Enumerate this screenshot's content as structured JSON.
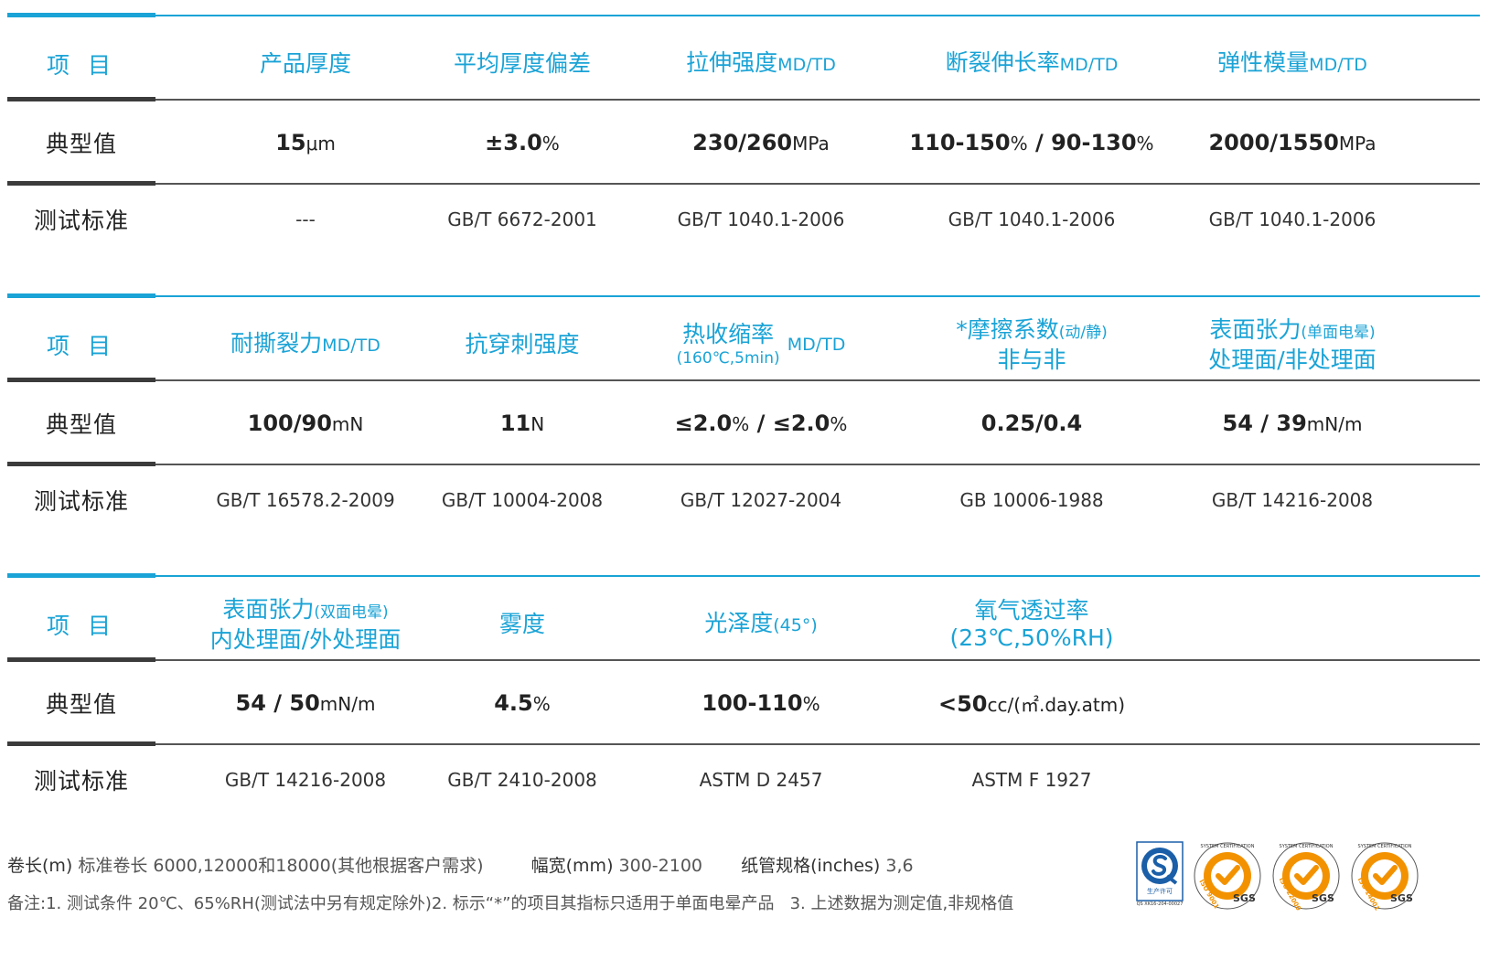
{
  "labels": {
    "item": "项 目",
    "typical": "典型值",
    "standard": "测试标准"
  },
  "section1": {
    "headers": [
      {
        "main": "产品厚度",
        "suffix": ""
      },
      {
        "main": "平均厚度偏差",
        "suffix": ""
      },
      {
        "main": "拉伸强度",
        "suffix": "MD/TD"
      },
      {
        "main": "断裂伸长率",
        "suffix": "MD/TD"
      },
      {
        "main": "弹性模量",
        "suffix": "MD/TD"
      }
    ],
    "values": [
      {
        "num": "15",
        "unit": "μm"
      },
      {
        "num": "±3.0",
        "unit": "%"
      },
      {
        "num": "230/260",
        "unit": "MPa"
      },
      {
        "num1": "110-150",
        "unit1": "%",
        "sep": " / ",
        "num2": "90-130",
        "unit2": "%"
      },
      {
        "num": "2000/1550",
        "unit": "MPa"
      }
    ],
    "standards": [
      "---",
      "GB/T 6672-2001",
      "GB/T 1040.1-2006",
      "GB/T 1040.1-2006",
      "GB/T 1040.1-2006"
    ]
  },
  "section2": {
    "headers": [
      {
        "main": "耐撕裂力",
        "suffix": "MD/TD"
      },
      {
        "main": "抗穿刺强度",
        "suffix": ""
      },
      {
        "main": "热收缩率",
        "sub": "(160℃,5min)",
        "suffix": "MD/TD"
      },
      {
        "main": "*摩擦系数",
        "small": "(动/静)",
        "sub": "非与非"
      },
      {
        "main": "表面张力",
        "small": "(单面电晕)",
        "sub": "处理面/非处理面"
      }
    ],
    "values": [
      {
        "num": "100/90",
        "unit": "mN"
      },
      {
        "num": "11",
        "unit": "N"
      },
      {
        "num1": "≤2.0",
        "unit1": "%",
        "sep": " / ",
        "num2": "≤2.0",
        "unit2": "%"
      },
      {
        "num": "0.25/0.4",
        "unit": ""
      },
      {
        "num": "54 / 39",
        "unit": "mN/m"
      }
    ],
    "standards": [
      "GB/T 16578.2-2009",
      "GB/T 10004-2008",
      "GB/T 12027-2004",
      "GB 10006-1988",
      "GB/T 14216-2008"
    ]
  },
  "section3": {
    "headers": [
      {
        "main": "表面张力",
        "small": "(双面电晕)",
        "sub": "内处理面/外处理面"
      },
      {
        "main": "雾度",
        "suffix": ""
      },
      {
        "main": "光泽度",
        "small": "(45°)"
      },
      {
        "main": "氧气透过率",
        "sub": "(23℃,50%RH)"
      }
    ],
    "values": [
      {
        "num": "54 / 50",
        "unit": "mN/m"
      },
      {
        "num": "4.5",
        "unit": "%"
      },
      {
        "num": "100-110",
        "unit": "%"
      },
      {
        "num": "<50",
        "unit": "cc/(㎡.day.atm)"
      }
    ],
    "standards": [
      "GB/T 14216-2008",
      "GB/T 2410-2008",
      "ASTM D 2457",
      "ASTM F 1927"
    ]
  },
  "footer": {
    "roll_length_label": "卷长(m)",
    "roll_length_value": "标准卷长 6000,12000和18000(其他根据客户需求)",
    "width_label": "幅宽(mm)",
    "width_value": "300-2100",
    "core_label": "纸管规格(inches)",
    "core_value": "3,6",
    "note": "备注:1. 测试条件 20℃、65%RH(测试法中另有规定除外)2. 标示“*”的项目其指标只适用于单面电晕产品   3. 上述数据为测定值,非规格值"
  },
  "logos": {
    "qs_caption": "生产许可",
    "qs_code": "QS XK16-204-00027",
    "cert_top": "SYSTEM CERTIFICATION",
    "certs": [
      {
        "standard": "ISO 9001",
        "brand": "SGS"
      },
      {
        "standard": "ISO 22000",
        "brand": "SGS"
      },
      {
        "standard": "ISO 14001",
        "brand": "SGS"
      }
    ],
    "colors": {
      "accent": "#1aa3d6",
      "qs_blue": "#1b5fa8",
      "sgs_orange": "#f39200"
    }
  }
}
